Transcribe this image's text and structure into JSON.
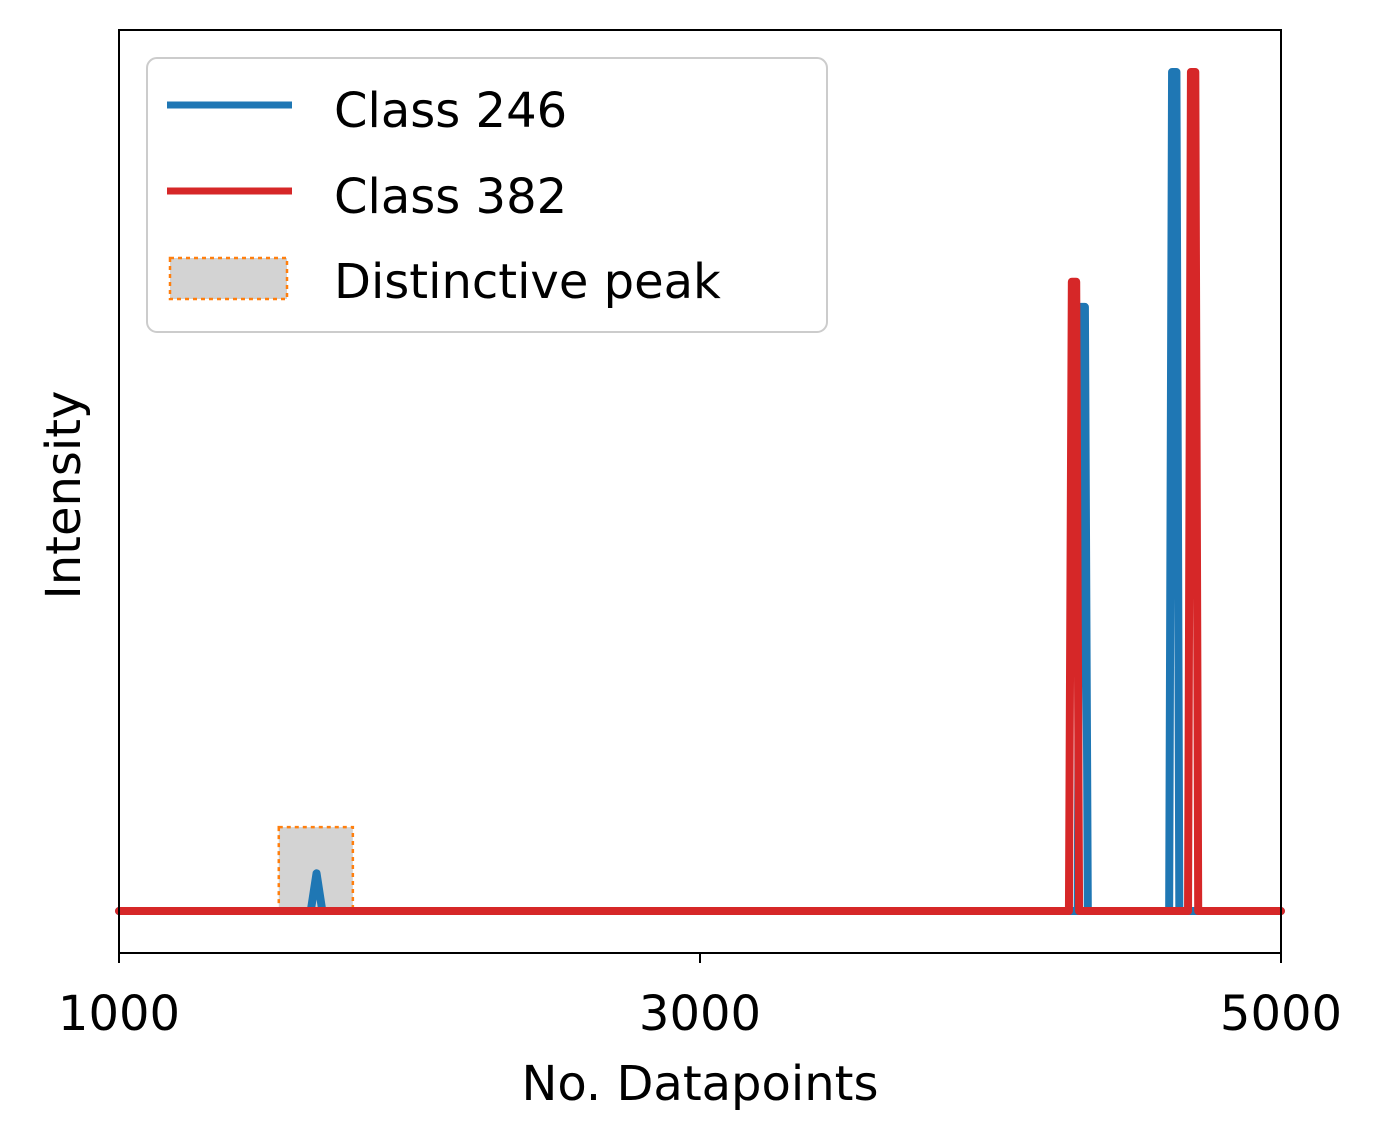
{
  "chart_data": {
    "type": "line",
    "title": "",
    "xlabel": "No. Datapoints",
    "ylabel": "Intensity",
    "xlim": [
      1000,
      5000
    ],
    "ylim": [
      -0.05,
      1.05
    ],
    "xticks": [
      1000,
      3000,
      5000
    ],
    "xtick_labels": [
      "1000",
      "3000",
      "5000"
    ],
    "yticks_visible": false,
    "grid": false,
    "legend_position": "top-left",
    "series": [
      {
        "name": "Class 246",
        "color": "#1f77b4",
        "points": [
          [
            1000,
            0
          ],
          [
            1660,
            0
          ],
          [
            1680,
            0.045
          ],
          [
            1700,
            0
          ],
          [
            4290,
            0
          ],
          [
            4300,
            0
          ],
          [
            4310,
            0.72
          ],
          [
            4325,
            0.72
          ],
          [
            4335,
            0
          ],
          [
            4615,
            0
          ],
          [
            4625,
            1.0
          ],
          [
            4640,
            1.0
          ],
          [
            4650,
            0
          ],
          [
            5000,
            0
          ]
        ]
      },
      {
        "name": "Class 382",
        "color": "#d62728",
        "points": [
          [
            1000,
            0
          ],
          [
            4270,
            0
          ],
          [
            4280,
            0.75
          ],
          [
            4295,
            0.75
          ],
          [
            4305,
            0
          ],
          [
            4680,
            0
          ],
          [
            4690,
            1.0
          ],
          [
            4705,
            1.0
          ],
          [
            4715,
            0
          ],
          [
            5000,
            0
          ]
        ]
      }
    ],
    "highlight": {
      "name": "Distinctive peak",
      "x_range": [
        1550,
        1805
      ],
      "y_range": [
        0,
        0.1
      ],
      "fill_color": "#d3d3d3",
      "edge_color": "#ff7f0e"
    }
  }
}
